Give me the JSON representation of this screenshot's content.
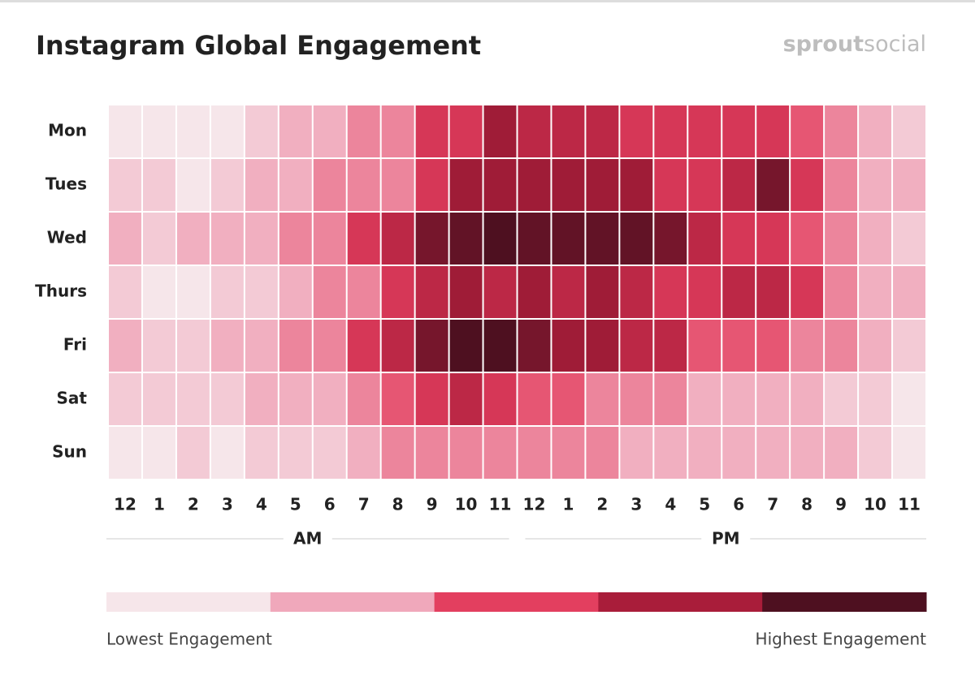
{
  "chart_data": {
    "type": "heatmap",
    "title": "Instagram Global Engagement",
    "brand": [
      "sprout",
      "social"
    ],
    "categories": [
      "12",
      "1",
      "2",
      "3",
      "4",
      "5",
      "6",
      "7",
      "8",
      "9",
      "10",
      "11",
      "12",
      "1",
      "2",
      "3",
      "4",
      "5",
      "6",
      "7",
      "8",
      "9",
      "10",
      "11"
    ],
    "groups": [
      "AM",
      "PM"
    ],
    "rows": [
      "Mon",
      "Tues",
      "Wed",
      "Thurs",
      "Fri",
      "Sat",
      "Sun"
    ],
    "z": [
      [
        1,
        1,
        1,
        1,
        2,
        3,
        3,
        4,
        4,
        6,
        6,
        8,
        7,
        7,
        7,
        6,
        6,
        6,
        6,
        6,
        5,
        4,
        3,
        2
      ],
      [
        2,
        2,
        1,
        2,
        3,
        3,
        4,
        4,
        4,
        6,
        8,
        8,
        8,
        8,
        8,
        8,
        6,
        6,
        7,
        9,
        6,
        4,
        3,
        3
      ],
      [
        3,
        2,
        3,
        3,
        3,
        4,
        4,
        6,
        7,
        9,
        9.5,
        10,
        9.5,
        9.5,
        9.5,
        9.5,
        9,
        7,
        6,
        6,
        5,
        4,
        3,
        2
      ],
      [
        2,
        1,
        1,
        2,
        2,
        3,
        4,
        4,
        6,
        7,
        8,
        7,
        8,
        7,
        8,
        7,
        6,
        6,
        7,
        7,
        6,
        4,
        3,
        3
      ],
      [
        3,
        2,
        2,
        3,
        3,
        4,
        4,
        6,
        7,
        9,
        10,
        10,
        9,
        8,
        8,
        7,
        7,
        5,
        5,
        5,
        4,
        4,
        3,
        2
      ],
      [
        2,
        2,
        2,
        2,
        3,
        3,
        3,
        4,
        5,
        6,
        7,
        6,
        5,
        5,
        4,
        4,
        4,
        3,
        3,
        3,
        3,
        2,
        2,
        1
      ],
      [
        1,
        1,
        2,
        1,
        2,
        2,
        2,
        3,
        4,
        4,
        4,
        4,
        4,
        4,
        4,
        3,
        3,
        3,
        3,
        3,
        3,
        3,
        2,
        1
      ]
    ],
    "zlim": [
      1,
      10
    ],
    "colorscale": [
      "#f6e6ea",
      "#f0a8bb",
      "#e33f5f",
      "#a91d3a",
      "#4e1020"
    ],
    "legend_labels": [
      "Lowest Engagement",
      "Highest Engagement"
    ]
  }
}
